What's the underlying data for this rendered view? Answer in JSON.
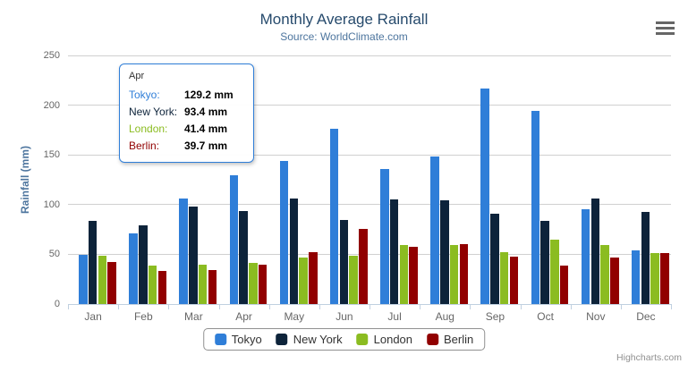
{
  "title": "Monthly Average Rainfall",
  "subtitle": "Source: WorldClimate.com",
  "credits": "Highcharts.com",
  "chart_data": {
    "type": "bar",
    "title": "Monthly Average Rainfall",
    "subtitle": "Source: WorldClimate.com",
    "xlabel": "",
    "ylabel": "Rainfall (mm)",
    "ylim": [
      0,
      250
    ],
    "yticks": [
      0,
      50,
      100,
      150,
      200,
      250
    ],
    "grid": true,
    "legend_position": "bottom-center",
    "categories": [
      "Jan",
      "Feb",
      "Mar",
      "Apr",
      "May",
      "Jun",
      "Jul",
      "Aug",
      "Sep",
      "Oct",
      "Nov",
      "Dec"
    ],
    "series": [
      {
        "name": "Tokyo",
        "color": "#2f7ed8",
        "values": [
          49.9,
          71.5,
          106.4,
          129.2,
          144.0,
          176.0,
          135.6,
          148.5,
          216.4,
          194.1,
          95.6,
          54.4
        ]
      },
      {
        "name": "New York",
        "color": "#0d233a",
        "values": [
          83.6,
          78.8,
          98.5,
          93.4,
          106.0,
          84.5,
          105.0,
          104.3,
          91.2,
          83.5,
          106.6,
          92.3
        ]
      },
      {
        "name": "London",
        "color": "#8bbc21",
        "values": [
          48.9,
          38.8,
          39.3,
          41.4,
          47.0,
          48.3,
          59.0,
          59.6,
          52.4,
          65.2,
          59.3,
          51.2
        ]
      },
      {
        "name": "Berlin",
        "color": "#910000",
        "values": [
          42.4,
          33.2,
          34.5,
          39.7,
          52.6,
          75.5,
          57.4,
          60.4,
          47.6,
          39.1,
          46.8,
          51.1
        ]
      }
    ]
  },
  "tooltip": {
    "header": "Apr",
    "border_color": "#2f7ed8",
    "rows": [
      {
        "label": "Tokyo:",
        "value": "129.2 mm",
        "color": "#2f7ed8"
      },
      {
        "label": "New York:",
        "value": "93.4 mm",
        "color": "#0d233a"
      },
      {
        "label": "London:",
        "value": "41.4 mm",
        "color": "#8bbc21"
      },
      {
        "label": "Berlin:",
        "value": "39.7 mm",
        "color": "#910000"
      }
    ]
  },
  "legend": {
    "items": [
      "Tokyo",
      "New York",
      "London",
      "Berlin"
    ]
  }
}
